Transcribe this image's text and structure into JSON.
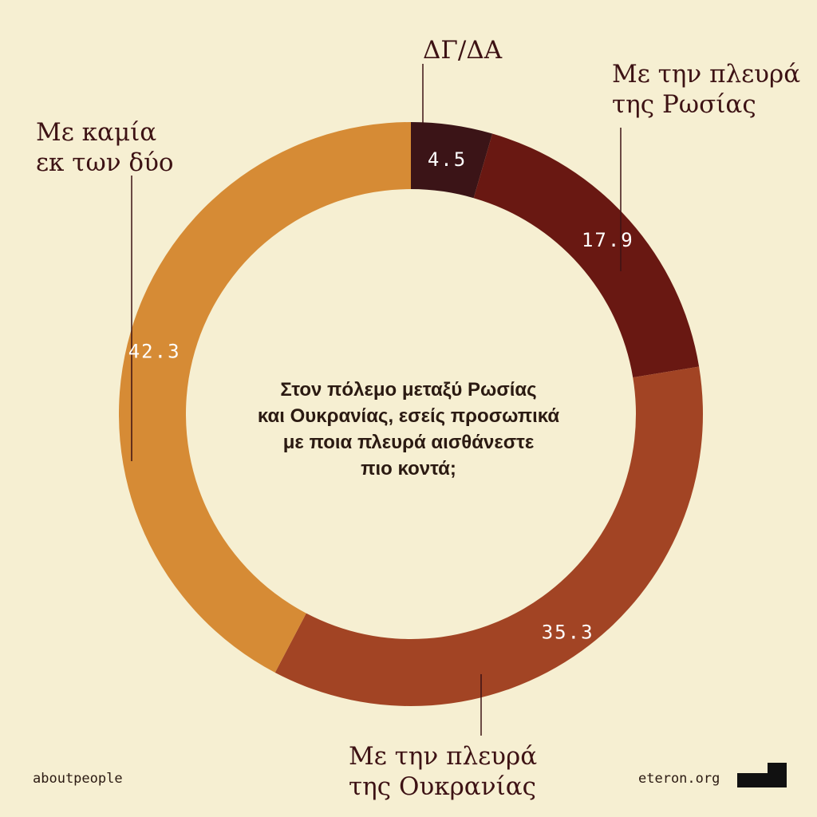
{
  "chart_data": {
    "type": "pie",
    "donut": true,
    "categories": [
      "ΔΓ/ΔΑ",
      "Με την πλευρά της Ρωσίας",
      "Με την πλευρά της Ουκρανίας",
      "Με καμία εκ των δύο"
    ],
    "values": [
      4.5,
      17.9,
      35.3,
      42.3
    ],
    "value_labels": [
      "4.5",
      "17.9",
      "35.3",
      "42.3"
    ],
    "colors": [
      "#3b1417",
      "#691812",
      "#a24424",
      "#d68b35"
    ],
    "title": ""
  },
  "labels": {
    "dgda": [
      "ΔΓ/ΔΑ"
    ],
    "russia": [
      "Με την πλευρά",
      "της Ρωσίας"
    ],
    "ukraine": [
      "Με την πλευρά",
      "της Ουκρανίας"
    ],
    "neither": [
      "Με καμία",
      "εκ των δύο"
    ]
  },
  "question": [
    "Στον πόλεμο μεταξύ Ρωσίας",
    "και Ουκρανίας, εσείς προσωπικά",
    "με ποια πλευρά αισθάνεστε",
    "πιο κοντά;"
  ],
  "footer": {
    "left": "aboutpeople",
    "right": "eteron.org"
  },
  "colors": {
    "background": "#f6efd2",
    "text": "#3d1214",
    "logo": "#111111"
  }
}
